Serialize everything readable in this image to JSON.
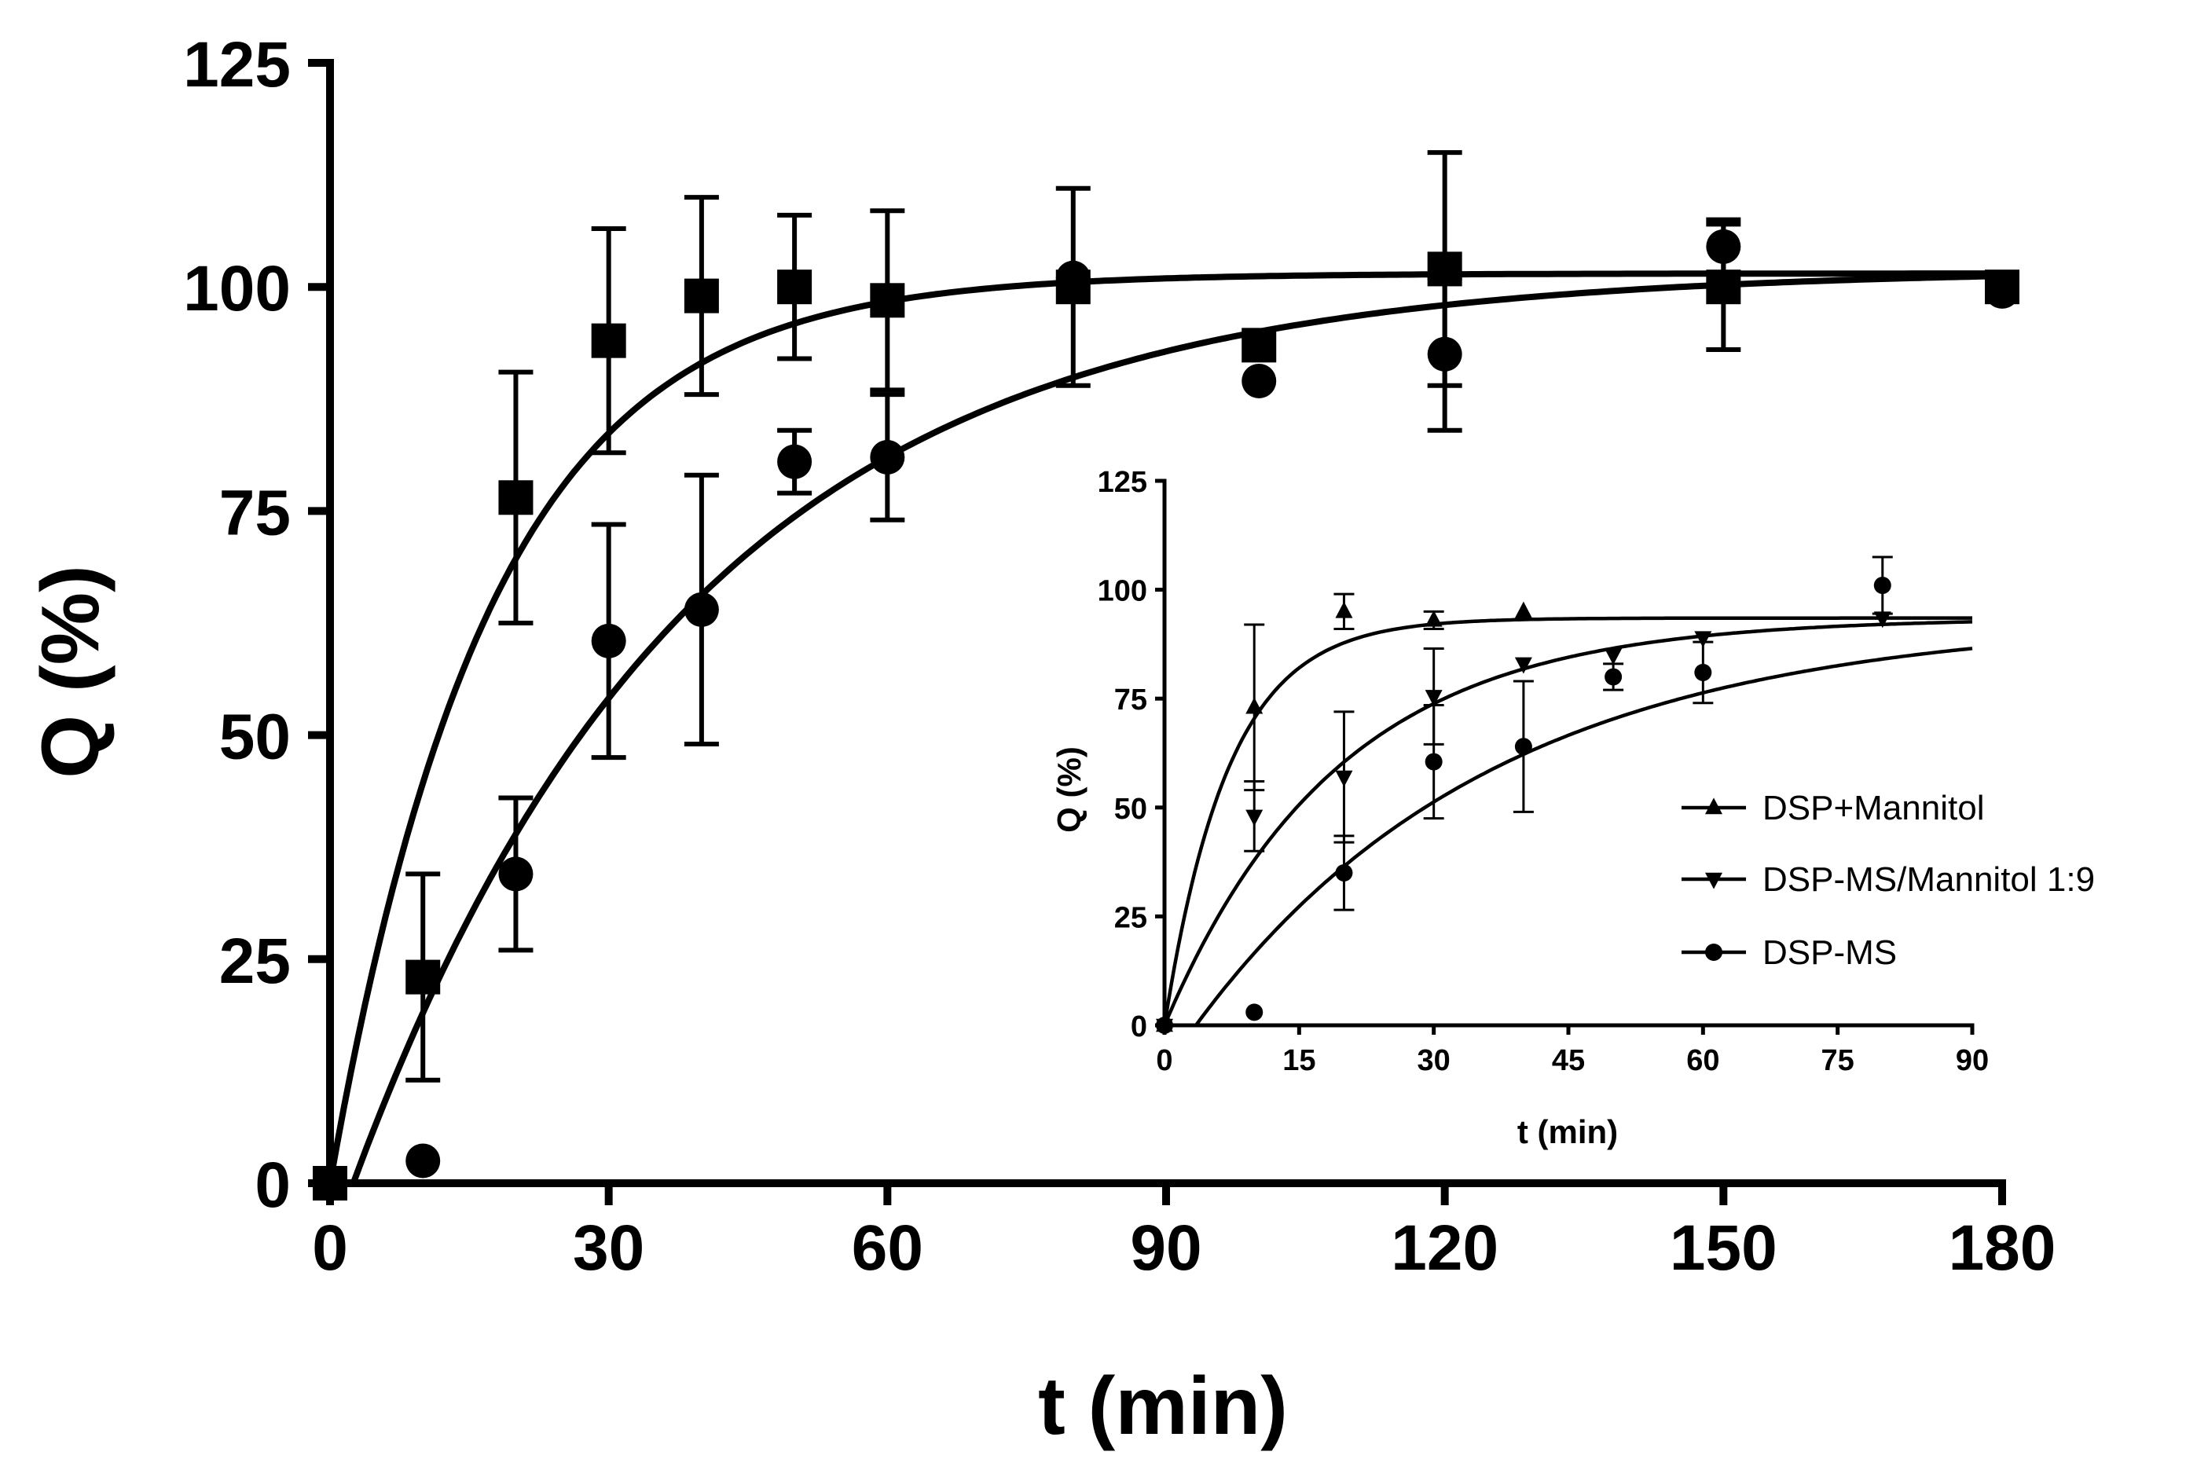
{
  "chart_data": [
    {
      "id": "main",
      "type": "scatter",
      "title": "",
      "xlabel": "t (min)",
      "ylabel": "Q (%)",
      "xlim": [
        0,
        180
      ],
      "ylim": [
        0,
        125
      ],
      "xticks": [
        0,
        30,
        60,
        90,
        120,
        150,
        180
      ],
      "yticks": [
        0,
        25,
        50,
        75,
        100,
        125
      ],
      "grid": false,
      "series": [
        {
          "name": "squares",
          "marker": "square",
          "x": [
            0,
            10,
            20,
            30,
            40,
            50,
            60,
            80,
            100,
            120,
            150,
            180
          ],
          "y": [
            0,
            23,
            76.5,
            94,
            99,
            100,
            98.5,
            100,
            93.5,
            102,
            100,
            100
          ],
          "err": [
            0,
            11.5,
            14,
            12.5,
            11,
            8,
            10,
            11,
            0,
            13,
            7,
            0
          ],
          "fit": {
            "plateau": 101.5,
            "k": 0.058,
            "t0": 0
          }
        },
        {
          "name": "circles",
          "marker": "circle",
          "x": [
            0,
            10,
            20,
            30,
            40,
            50,
            60,
            80,
            100,
            120,
            150,
            180
          ],
          "y": [
            0,
            2.5,
            34.5,
            60.5,
            64,
            80.5,
            81,
            101,
            89.5,
            92.5,
            104.5,
            99.5
          ],
          "err": [
            0,
            0,
            8.5,
            13,
            15,
            3.5,
            7,
            0,
            0,
            8.5,
            3,
            0
          ],
          "fit": {
            "plateau": 102,
            "k": 0.0275,
            "t0": 2.5
          }
        }
      ]
    },
    {
      "id": "inset",
      "type": "scatter",
      "title": "",
      "xlabel": "t (min)",
      "ylabel": "Q (%)",
      "xlim": [
        0,
        90
      ],
      "ylim": [
        0,
        125
      ],
      "xticks": [
        0,
        15,
        30,
        45,
        60,
        75,
        90
      ],
      "yticks": [
        0,
        25,
        50,
        75,
        100,
        125
      ],
      "grid": false,
      "legend_position": "right",
      "series": [
        {
          "name": "DSP+Mannitol",
          "marker": "triangle-up",
          "x": [
            0,
            10,
            20,
            30,
            40
          ],
          "y": [
            0,
            73,
            95,
            93,
            95
          ],
          "err": [
            0,
            19,
            4,
            2,
            0
          ],
          "fit": {
            "plateau": 93.5,
            "k": 0.14,
            "t0": 0
          }
        },
        {
          "name": "DSP-MS/Mannitol 1:9",
          "marker": "triangle-down",
          "x": [
            0,
            10,
            20,
            30,
            40,
            50,
            60,
            80
          ],
          "y": [
            0,
            48,
            57,
            75.5,
            83,
            85,
            89,
            93.5
          ],
          "err": [
            0,
            8,
            15,
            11,
            0,
            0,
            0,
            0
          ],
          "fit": {
            "plateau": 93.5,
            "k": 0.052,
            "t0": 0
          }
        },
        {
          "name": "DSP-MS",
          "marker": "circle",
          "x": [
            0,
            10,
            20,
            30,
            40,
            50,
            60,
            80
          ],
          "y": [
            0,
            3,
            35,
            60.5,
            64,
            80,
            81,
            101
          ],
          "err": [
            0,
            0,
            8.5,
            13,
            15,
            3,
            7,
            6.5
          ],
          "fit": {
            "plateau": 93.5,
            "k": 0.03,
            "t0": 3.5
          }
        }
      ]
    }
  ]
}
